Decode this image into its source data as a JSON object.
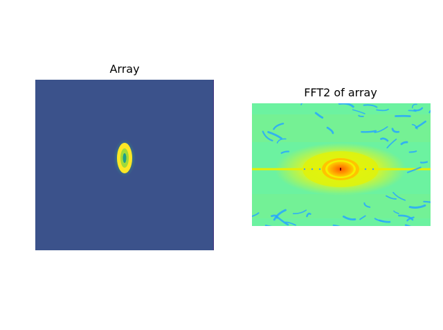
{
  "chart_data": [
    {
      "type": "heatmap",
      "title": "Array",
      "colormap": "viridis",
      "background_color": "#3b528b",
      "features": [
        {
          "label": "ellipse",
          "color": "#fde725"
        },
        {
          "label": "halo",
          "color": "#35b779"
        },
        {
          "label": "core",
          "color": "#1f9e89"
        }
      ],
      "axes_visible": false
    },
    {
      "type": "heatmap",
      "title": "FFT2 of array",
      "colormap": "jet",
      "background_color": "#6cf2a0",
      "features": [
        {
          "label": "central peak",
          "color": "#ff6a00"
        },
        {
          "label": "inner ring",
          "color": "#ffc400"
        },
        {
          "label": "lobe",
          "color": "#d9f72a"
        },
        {
          "label": "horizontal line",
          "color": "#e8ef00"
        },
        {
          "label": "speckle",
          "color": "#27a7ff"
        }
      ],
      "axes_visible": false
    }
  ]
}
